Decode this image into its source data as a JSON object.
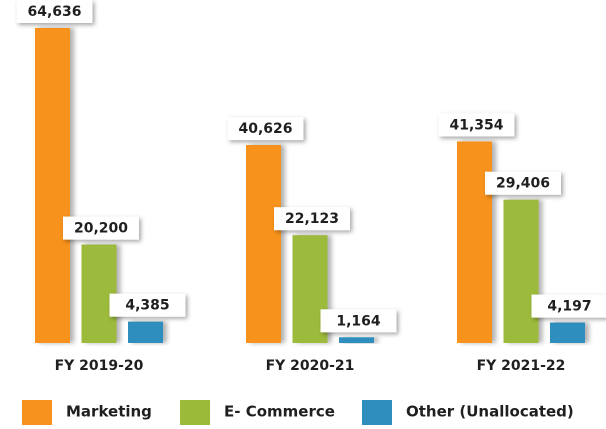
{
  "chart_data": {
    "type": "bar",
    "categories": [
      "FY 2019-20",
      "FY 2020-21",
      "FY 2021-22"
    ],
    "series": [
      {
        "name": "Marketing",
        "color": "#f7921e",
        "values": [
          64636,
          40626,
          41354
        ],
        "value_labels": [
          "64,636",
          "40,626",
          "41,354"
        ]
      },
      {
        "name": "E- Commerce",
        "color": "#9cba3a",
        "values": [
          20200,
          22123,
          29406
        ],
        "value_labels": [
          "20,200",
          "22,123",
          "29,406"
        ]
      },
      {
        "name": "Other (Unallocated)",
        "color": "#2f8ebd",
        "values": [
          4385,
          1164,
          4197
        ],
        "value_labels": [
          "4,385",
          "1,164",
          "4,197"
        ]
      }
    ]
  }
}
